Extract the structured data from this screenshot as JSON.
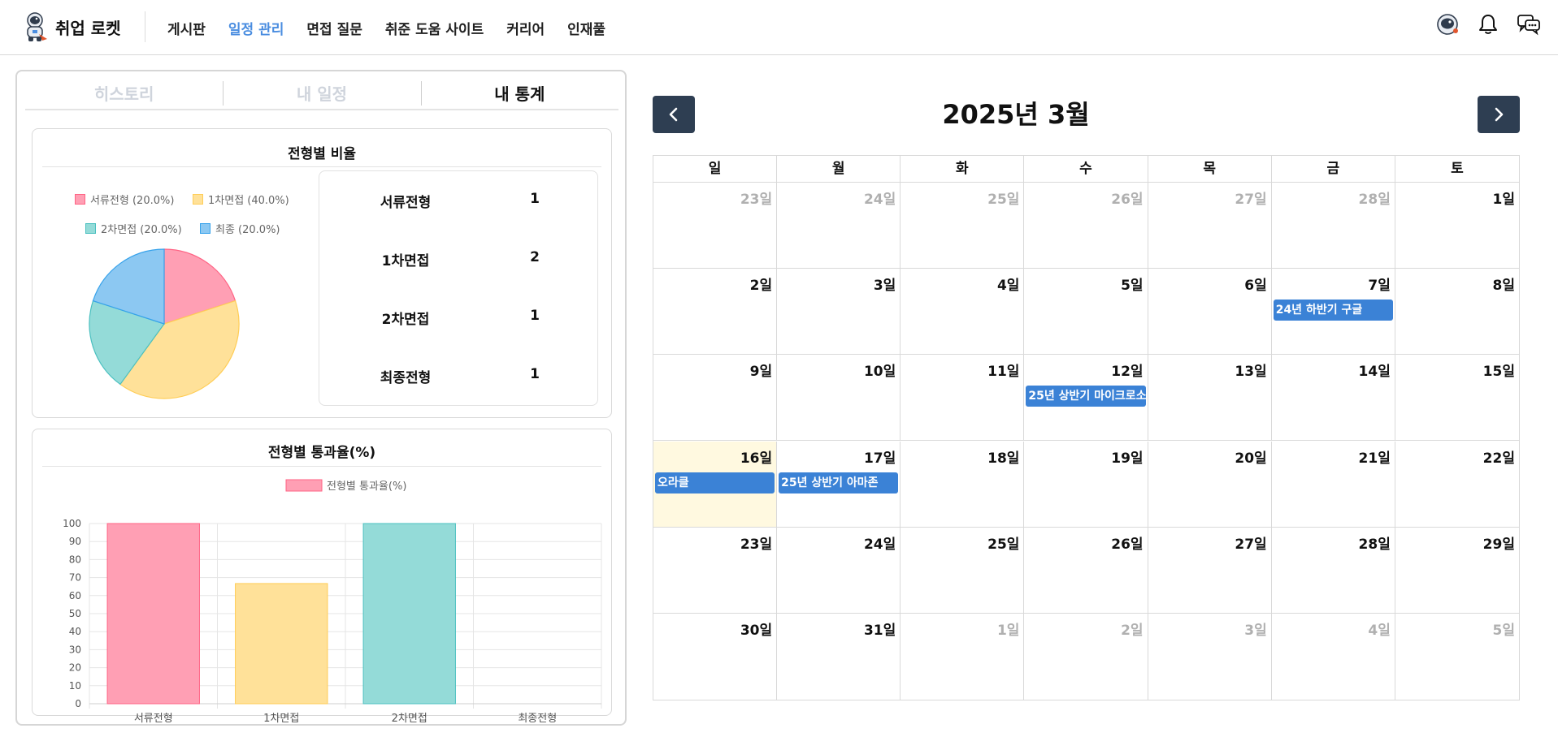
{
  "header": {
    "logo_text": "취업 로켓",
    "nav": [
      {
        "label": "게시판",
        "active": false
      },
      {
        "label": "일정 관리",
        "active": true
      },
      {
        "label": "면접 질문",
        "active": false
      },
      {
        "label": "취준 도움 사이트",
        "active": false
      },
      {
        "label": "커리어",
        "active": false
      },
      {
        "label": "인재풀",
        "active": false
      }
    ],
    "icons": [
      "astronaut-avatar-icon",
      "bell-icon",
      "chat-icon"
    ],
    "accent_color": "#4a8de0"
  },
  "tabs": [
    {
      "label": "히스토리",
      "active": false
    },
    {
      "label": "내 일정",
      "active": false
    },
    {
      "label": "내 통계",
      "active": true
    }
  ],
  "stats": {
    "pie_card_title": "전형별 비율",
    "bar_card_title": "전형별 통과율(%)",
    "rows": [
      {
        "label": "서류전형",
        "value": "1"
      },
      {
        "label": "1차면접",
        "value": "2"
      },
      {
        "label": "2차면접",
        "value": "1"
      },
      {
        "label": "최종전형",
        "value": "1"
      }
    ]
  },
  "chart_data": [
    {
      "type": "pie",
      "title": "전형별 비율",
      "legend_position": "top",
      "slices": [
        {
          "label": "서류전형 (20.0%)",
          "value": 20,
          "color": "#ff9fb4",
          "border": "#ff6384"
        },
        {
          "label": "1차면접 (40.0%)",
          "value": 40,
          "color": "#ffe199",
          "border": "#ffcd56"
        },
        {
          "label": "2차면접 (20.0%)",
          "value": 20,
          "color": "#94dbd8",
          "border": "#4bc0c0"
        },
        {
          "label": "최종 (20.0%)",
          "value": 20,
          "color": "#8cc8f2",
          "border": "#36a2eb"
        }
      ]
    },
    {
      "type": "bar",
      "title": "전형별 통과율(%)",
      "legend_position": "top",
      "categories": [
        "서류전형",
        "1차면접",
        "2차면접",
        "최종전형"
      ],
      "series": [
        {
          "name": "전형별 통과율(%)",
          "values": [
            100,
            66.7,
            100,
            0
          ]
        }
      ],
      "colors": [
        "#ff9fb4",
        "#ffe199",
        "#94dbd8",
        "#8cc8f2"
      ],
      "borders": [
        "#ff6384",
        "#ffcd56",
        "#4bc0c0",
        "#36a2eb"
      ],
      "legend_color": "#ff9fb4",
      "legend_border": "#ff6384",
      "yticks": [
        0,
        10,
        20,
        30,
        40,
        50,
        60,
        70,
        80,
        90,
        100
      ],
      "ylim": [
        0,
        100
      ],
      "grid": true
    }
  ],
  "calendar": {
    "title": "2025년 3월",
    "prev_label": "previous-month",
    "next_label": "next-month",
    "weekdays": [
      "일",
      "월",
      "화",
      "수",
      "목",
      "금",
      "토"
    ],
    "weeks": [
      [
        {
          "d": "23일",
          "m": true
        },
        {
          "d": "24일",
          "m": true
        },
        {
          "d": "25일",
          "m": true
        },
        {
          "d": "26일",
          "m": true
        },
        {
          "d": "27일",
          "m": true
        },
        {
          "d": "28일",
          "m": true
        },
        {
          "d": "1일",
          "m": false
        }
      ],
      [
        {
          "d": "2일",
          "m": false
        },
        {
          "d": "3일",
          "m": false
        },
        {
          "d": "4일",
          "m": false
        },
        {
          "d": "5일",
          "m": false
        },
        {
          "d": "6일",
          "m": false
        },
        {
          "d": "7일",
          "m": false,
          "event": "24년 하반기 구글"
        },
        {
          "d": "8일",
          "m": false
        }
      ],
      [
        {
          "d": "9일",
          "m": false
        },
        {
          "d": "10일",
          "m": false
        },
        {
          "d": "11일",
          "m": false
        },
        {
          "d": "12일",
          "m": false,
          "event": "25년 상반기 마이크로소"
        },
        {
          "d": "13일",
          "m": false
        },
        {
          "d": "14일",
          "m": false
        },
        {
          "d": "15일",
          "m": false
        }
      ],
      [
        {
          "d": "16일",
          "m": false,
          "today": true,
          "event": "오라클"
        },
        {
          "d": "17일",
          "m": false,
          "event": "25년 상반기 아마존"
        },
        {
          "d": "18일",
          "m": false
        },
        {
          "d": "19일",
          "m": false
        },
        {
          "d": "20일",
          "m": false
        },
        {
          "d": "21일",
          "m": false
        },
        {
          "d": "22일",
          "m": false
        }
      ],
      [
        {
          "d": "23일",
          "m": false
        },
        {
          "d": "24일",
          "m": false
        },
        {
          "d": "25일",
          "m": false
        },
        {
          "d": "26일",
          "m": false
        },
        {
          "d": "27일",
          "m": false
        },
        {
          "d": "28일",
          "m": false
        },
        {
          "d": "29일",
          "m": false
        }
      ],
      [
        {
          "d": "30일",
          "m": false
        },
        {
          "d": "31일",
          "m": false
        },
        {
          "d": "1일",
          "m": true
        },
        {
          "d": "2일",
          "m": true
        },
        {
          "d": "3일",
          "m": true
        },
        {
          "d": "4일",
          "m": true
        },
        {
          "d": "5일",
          "m": true
        }
      ]
    ],
    "event_color": "#3b82d6",
    "today_color": "#fff9e0"
  }
}
